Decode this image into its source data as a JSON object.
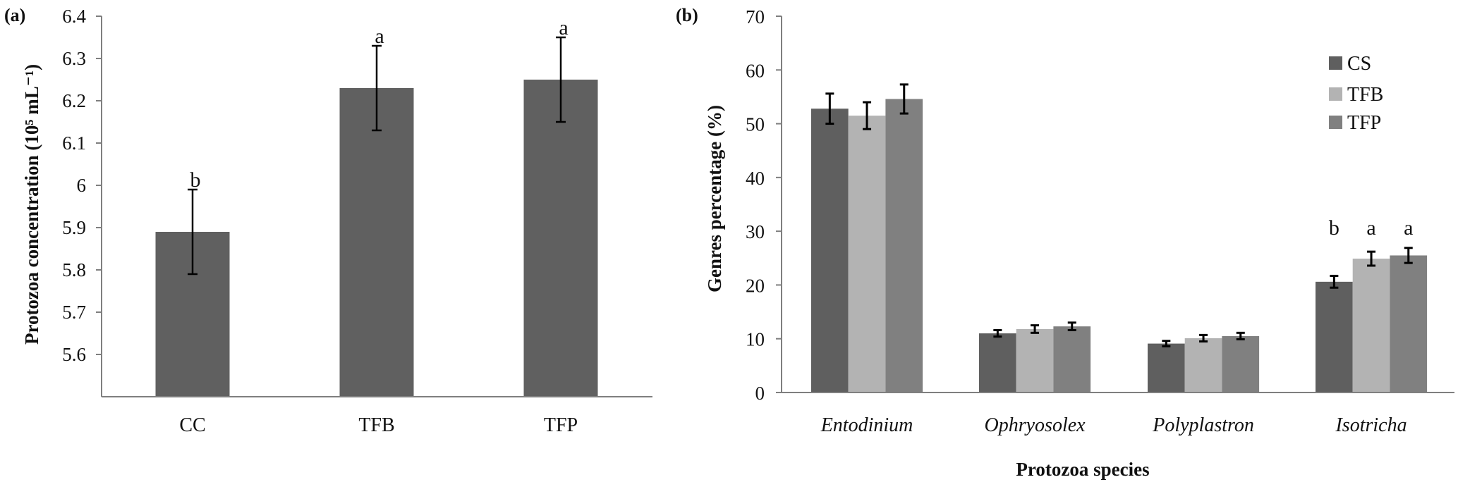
{
  "figure": {
    "panel_a_label": "(a)",
    "panel_b_label": "(b)"
  },
  "chart_data": [
    {
      "id": "a",
      "type": "bar",
      "title": "",
      "panel_label": "(a)",
      "xlabel": "",
      "ylabel": "Protozoa concentration (10⁵ mL⁻¹)",
      "ylim": [
        5.5,
        6.4
      ],
      "yticks": [
        5.6,
        5.7,
        5.8,
        5.9,
        6,
        6.1,
        6.2,
        6.3,
        6.4
      ],
      "ytick_labels": [
        "5.6",
        "5.7",
        "5.8",
        "5.9",
        "6",
        "6.1",
        "6.2",
        "6.3",
        "6.4"
      ],
      "categories": [
        "CC",
        "TFB",
        "TFP"
      ],
      "values": [
        5.89,
        6.23,
        6.25
      ],
      "errors": [
        0.1,
        0.1,
        0.1
      ],
      "significance_letters": [
        "b",
        "a",
        "a"
      ],
      "bar_color": "#606060",
      "grid": false,
      "legend": null
    },
    {
      "id": "b",
      "type": "bar",
      "title": "",
      "panel_label": "(b)",
      "xlabel": "Protozoa species",
      "ylabel": "Genres percentage (%)",
      "ylim": [
        0,
        70
      ],
      "yticks": [
        0,
        10,
        20,
        30,
        40,
        50,
        60,
        70
      ],
      "ytick_labels": [
        "0",
        "10",
        "20",
        "30",
        "40",
        "50",
        "60",
        "70"
      ],
      "categories": [
        "Entodinium",
        "Ophryosolex",
        "Polyplastron",
        "Isotricha"
      ],
      "series": [
        {
          "name": "CS",
          "color": "#5f5f5f",
          "values": [
            52.8,
            11.0,
            9.1,
            20.6
          ],
          "errors": [
            2.8,
            0.6,
            0.5,
            1.1
          ]
        },
        {
          "name": "TFB",
          "color": "#b3b3b3",
          "values": [
            51.5,
            11.8,
            10.1,
            24.9
          ],
          "errors": [
            2.5,
            0.7,
            0.6,
            1.3
          ]
        },
        {
          "name": "TFP",
          "color": "#808080",
          "values": [
            54.6,
            12.3,
            10.5,
            25.5
          ],
          "errors": [
            2.7,
            0.7,
            0.6,
            1.4
          ]
        }
      ],
      "significance_letters": {
        "Isotricha": [
          "b",
          "a",
          "a"
        ]
      },
      "grid": false,
      "legend": "top-right"
    }
  ]
}
